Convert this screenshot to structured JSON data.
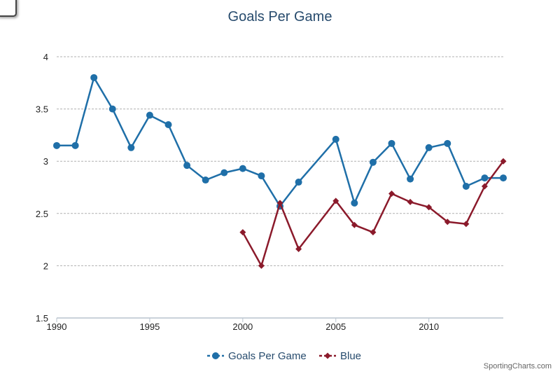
{
  "chart_data": {
    "type": "line",
    "title": "Goals Per Game",
    "xlabel": "",
    "ylabel": "",
    "xlim": [
      1990,
      2014
    ],
    "ylim": [
      1.5,
      4
    ],
    "x_ticks": [
      1990,
      1995,
      2000,
      2005,
      2010
    ],
    "y_ticks": [
      1.5,
      2,
      2.5,
      3,
      3.5,
      4
    ],
    "y_tick_labels": [
      "1.5",
      "2",
      "2.5",
      "3",
      "3.5",
      "4"
    ],
    "grid": true,
    "legend_position": "bottom-center",
    "series": [
      {
        "name": "Goals Per Game",
        "color": "#1f6fa8",
        "marker": "circle",
        "x": [
          1990,
          1991,
          1992,
          1993,
          1994,
          1995,
          1996,
          1997,
          1998,
          1999,
          2000,
          2001,
          2002,
          2003,
          2005,
          2006,
          2007,
          2008,
          2009,
          2010,
          2011,
          2012,
          2013,
          2014
        ],
        "y": [
          3.15,
          3.15,
          3.8,
          3.5,
          3.13,
          3.44,
          3.35,
          2.96,
          2.82,
          2.89,
          2.93,
          2.86,
          2.57,
          2.8,
          3.21,
          2.6,
          2.99,
          3.17,
          2.83,
          3.13,
          3.17,
          2.76,
          2.84,
          2.84
        ]
      },
      {
        "name": "Blue",
        "color": "#8b1a2b",
        "marker": "diamond",
        "x": [
          2000,
          2001,
          2002,
          2003,
          2005,
          2006,
          2007,
          2008,
          2009,
          2010,
          2011,
          2012,
          2013,
          2014
        ],
        "y": [
          2.32,
          2.0,
          2.6,
          2.16,
          2.62,
          2.39,
          2.32,
          2.69,
          2.61,
          2.56,
          2.42,
          2.4,
          2.76,
          3.0
        ]
      }
    ]
  },
  "credit": "SportingCharts.com"
}
